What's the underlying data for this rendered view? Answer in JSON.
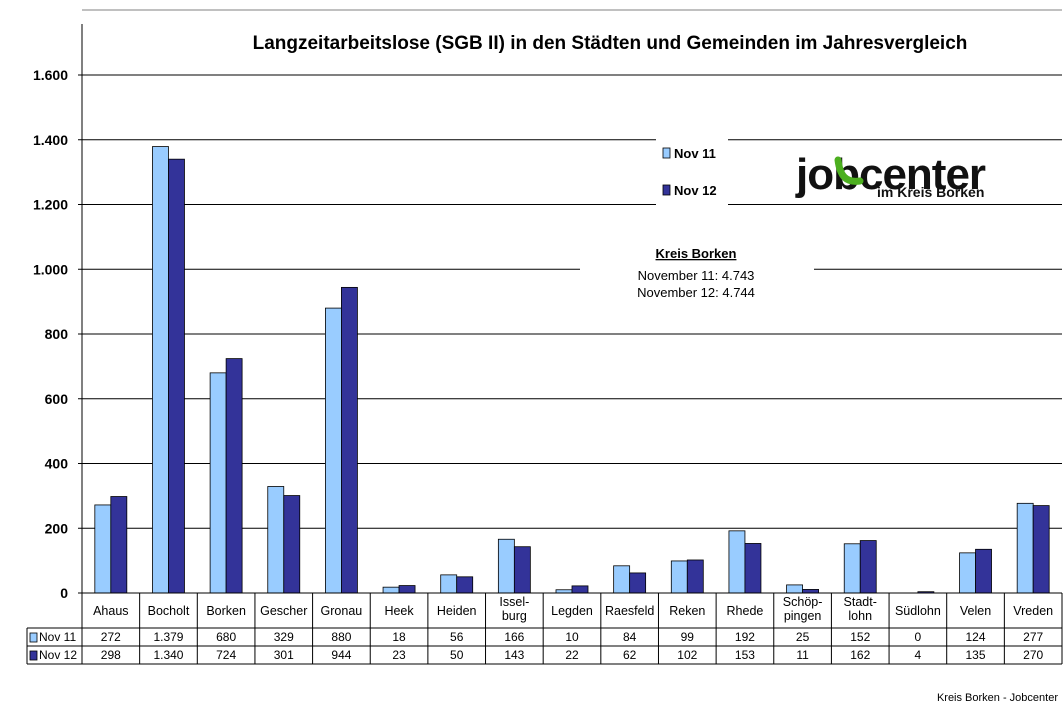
{
  "chart_data": {
    "type": "bar",
    "title": "Langzeitarbeitslose (SGB II) in den Städten und Gemeinden im Jahresvergleich",
    "categories": [
      "Ahaus",
      "Bocholt",
      "Borken",
      "Gescher",
      "Gronau",
      "Heek",
      "Heiden",
      "Issel-\nburg",
      "Legden",
      "Raesfeld",
      "Reken",
      "Rhede",
      "Schöp-\npingen",
      "Stadt-\nlohn",
      "Südlohn",
      "Velen",
      "Vreden"
    ],
    "series": [
      {
        "name": "Nov 11",
        "color": "#99ccff",
        "values": [
          272,
          1379,
          680,
          329,
          880,
          18,
          56,
          166,
          10,
          84,
          99,
          192,
          25,
          152,
          0,
          124,
          277
        ],
        "labels": [
          "272",
          "1.379",
          "680",
          "329",
          "880",
          "18",
          "56",
          "166",
          "10",
          "84",
          "99",
          "192",
          "25",
          "152",
          "0",
          "124",
          "277"
        ]
      },
      {
        "name": "Nov 12",
        "color": "#333399",
        "values": [
          298,
          1340,
          724,
          301,
          944,
          23,
          50,
          143,
          22,
          62,
          102,
          153,
          11,
          162,
          4,
          135,
          270
        ],
        "labels": [
          "298",
          "1.340",
          "724",
          "301",
          "944",
          "23",
          "50",
          "143",
          "22",
          "62",
          "102",
          "153",
          "11",
          "162",
          "4",
          "135",
          "270"
        ]
      }
    ],
    "ylim": [
      0,
      1600
    ],
    "yticks": [
      0,
      200,
      400,
      600,
      800,
      1000,
      1200,
      1400,
      1600
    ],
    "ytick_labels": [
      "0",
      "200",
      "400",
      "600",
      "800",
      "1.000",
      "1.200",
      "1.400",
      "1.600"
    ],
    "grid": true,
    "legend": "top-right",
    "data_table": true
  },
  "annotation": {
    "title": "Kreis Borken",
    "line1": "November 11: 4.743",
    "line2": "November 12: 4.744"
  },
  "logo": {
    "text_main": "jobcenter",
    "text_sub": "im Kreis Borken",
    "color_green": "#4caf1f"
  },
  "footer": "Kreis Borken - Jobcenter"
}
